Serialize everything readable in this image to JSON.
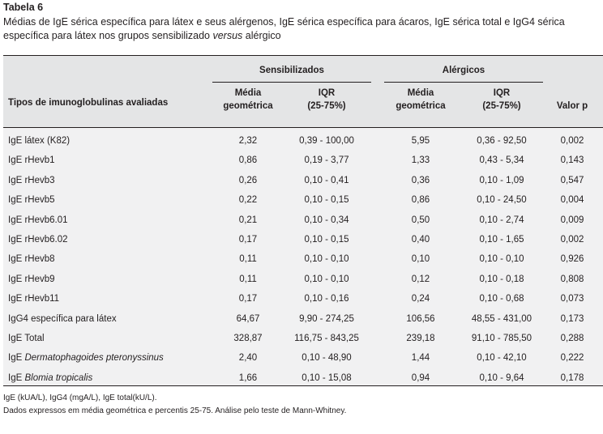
{
  "title": "Tabela 6",
  "caption_before": "Médias de IgE sérica específica para látex e seus alérgenos, IgE sérica específica para ácaros, IgE sérica total e IgG4 sérica específica para látex nos grupos sensibilizado ",
  "caption_italic": "versus",
  "caption_after": " alérgico",
  "header": {
    "row_label": "Tipos de imunoglobulinas avaliadas",
    "group1": "Sensibilizados",
    "group2": "Alérgicos",
    "media_line1": "Média",
    "media_line2": "geométrica",
    "iqr_line1": "IQR",
    "iqr_line2": "(25-75%)",
    "pvalue": "Valor p"
  },
  "rows": [
    {
      "prefix": "IgE látex (K82)",
      "italic": "",
      "s_media": "2,32",
      "s_iqr": "0,39 - 100,00",
      "a_media": "5,95",
      "a_iqr": "0,36 - 92,50",
      "p": "0,002"
    },
    {
      "prefix": "IgE rHevb1",
      "italic": "",
      "s_media": "0,86",
      "s_iqr": "0,19 - 3,77",
      "a_media": "1,33",
      "a_iqr": "0,43 - 5,34",
      "p": "0,143"
    },
    {
      "prefix": "IgE rHevb3",
      "italic": "",
      "s_media": "0,26",
      "s_iqr": "0,10 - 0,41",
      "a_media": "0,36",
      "a_iqr": "0,10 - 1,09",
      "p": "0,547"
    },
    {
      "prefix": "IgE rHevb5",
      "italic": "",
      "s_media": "0,22",
      "s_iqr": "0,10 - 0,15",
      "a_media": "0,86",
      "a_iqr": "0,10 - 24,50",
      "p": "0,004"
    },
    {
      "prefix": "IgE rHevb6.01",
      "italic": "",
      "s_media": "0,21",
      "s_iqr": "0,10 - 0,34",
      "a_media": "0,50",
      "a_iqr": "0,10 - 2,74",
      "p": "0,009"
    },
    {
      "prefix": "IgE rHevb6.02",
      "italic": "",
      "s_media": "0,17",
      "s_iqr": "0,10 - 0,15",
      "a_media": "0,40",
      "a_iqr": "0,10 - 1,65",
      "p": "0,002"
    },
    {
      "prefix": "IgE rHevb8",
      "italic": "",
      "s_media": "0,11",
      "s_iqr": "0,10 - 0,10",
      "a_media": "0,10",
      "a_iqr": "0,10 - 0,10",
      "p": "0,926"
    },
    {
      "prefix": "IgE rHevb9",
      "italic": "",
      "s_media": "0,11",
      "s_iqr": "0,10 - 0,10",
      "a_media": "0,12",
      "a_iqr": "0,10 - 0,18",
      "p": "0,808"
    },
    {
      "prefix": "IgE rHevb11",
      "italic": "",
      "s_media": "0,17",
      "s_iqr": "0,10 - 0,16",
      "a_media": "0,24",
      "a_iqr": "0,10 - 0,68",
      "p": "0,073"
    },
    {
      "prefix": "IgG4 específica para látex",
      "italic": "",
      "s_media": "64,67",
      "s_iqr": "9,90 - 274,25",
      "a_media": "106,56",
      "a_iqr": "48,55 - 431,00",
      "p": "0,173"
    },
    {
      "prefix": "IgE Total",
      "italic": "",
      "s_media": "328,87",
      "s_iqr": "116,75 - 843,25",
      "a_media": "239,18",
      "a_iqr": "91,10 - 785,50",
      "p": "0,288"
    },
    {
      "prefix": "IgE ",
      "italic": "Dermatophagoides pteronyssinus",
      "s_media": "2,40",
      "s_iqr": "0,10 - 48,90",
      "a_media": "1,44",
      "a_iqr": "0,10 - 42,10",
      "p": "0,222"
    },
    {
      "prefix": "IgE ",
      "italic": "Blomia tropicalis",
      "s_media": "1,66",
      "s_iqr": "0,10 - 15,08",
      "a_media": "0,94",
      "a_iqr": "0,10 - 9,64",
      "p": "0,178"
    }
  ],
  "footnote1": "IgE (kUA/L), IgG4 (mgA/L), IgE total(kU/L).",
  "footnote2": "Dados expressos em média geométrica e percentis 25-75. Análise pelo teste de Mann-Whitney."
}
